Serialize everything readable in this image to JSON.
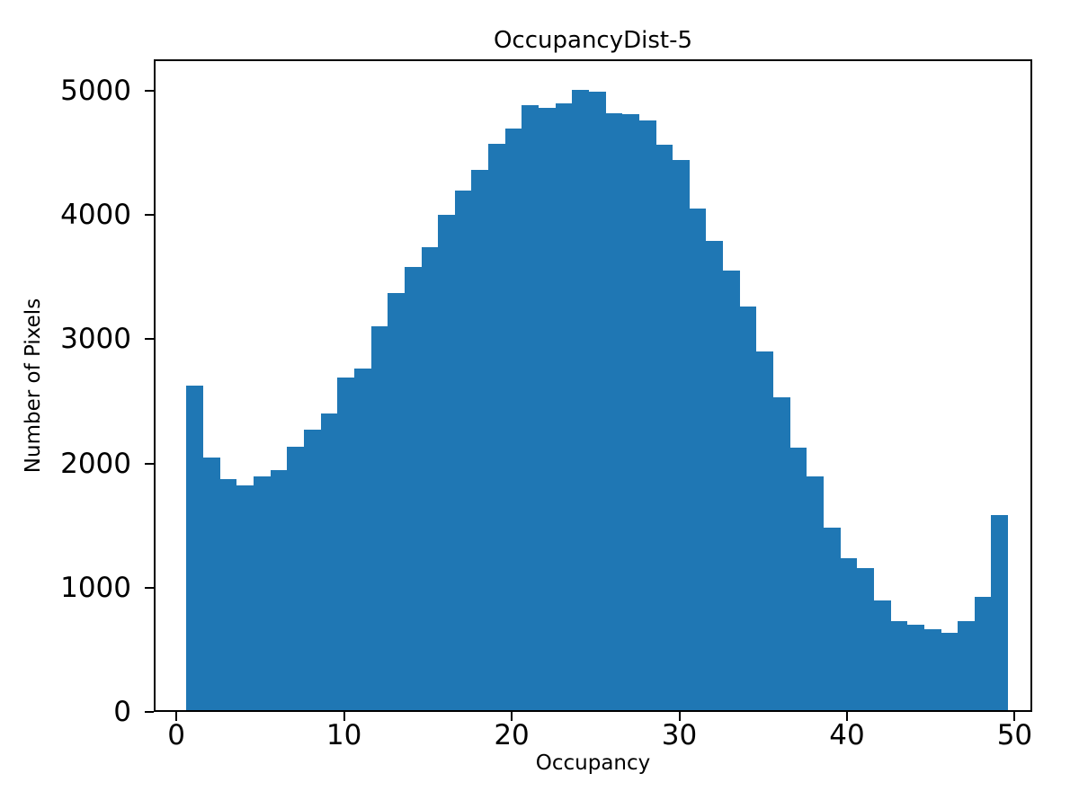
{
  "chart_data": {
    "type": "bar",
    "chart_kind": "histogram",
    "title": "OccupancyDist-5",
    "xlabel": "Occupancy",
    "ylabel": "Number of Pixels",
    "bar_color": "#1f77b4",
    "axis_color": "#000000",
    "background_color": "#ffffff",
    "grid": false,
    "legend_position": "none",
    "bin_start": 0.5,
    "bin_width": 1,
    "categories": [
      1,
      2,
      3,
      4,
      5,
      6,
      7,
      8,
      9,
      10,
      11,
      12,
      13,
      14,
      15,
      16,
      17,
      18,
      19,
      20,
      21,
      22,
      23,
      24,
      25,
      26,
      27,
      28,
      29,
      30,
      31,
      32,
      33,
      34,
      35,
      36,
      37,
      38,
      39,
      40,
      41,
      42,
      43,
      44,
      45,
      46,
      47,
      48,
      49
    ],
    "values": [
      2610,
      2030,
      1860,
      1810,
      1880,
      1935,
      2120,
      2255,
      2390,
      2675,
      2750,
      3090,
      3355,
      3570,
      3730,
      3990,
      4180,
      4350,
      4560,
      4685,
      4870,
      4845,
      4885,
      4995,
      4980,
      4805,
      4795,
      4750,
      4550,
      4425,
      4040,
      3780,
      3535,
      3250,
      2885,
      2520,
      2115,
      1880,
      1470,
      1225,
      1140,
      880,
      715,
      685,
      650,
      620,
      715,
      910,
      1570
    ],
    "xticks": [
      0,
      10,
      20,
      30,
      40,
      50
    ],
    "yticks": [
      0,
      1000,
      2000,
      3000,
      4000,
      5000
    ],
    "xlim": [
      -1.35,
      51.05
    ],
    "ylim": [
      0,
      5253
    ]
  }
}
